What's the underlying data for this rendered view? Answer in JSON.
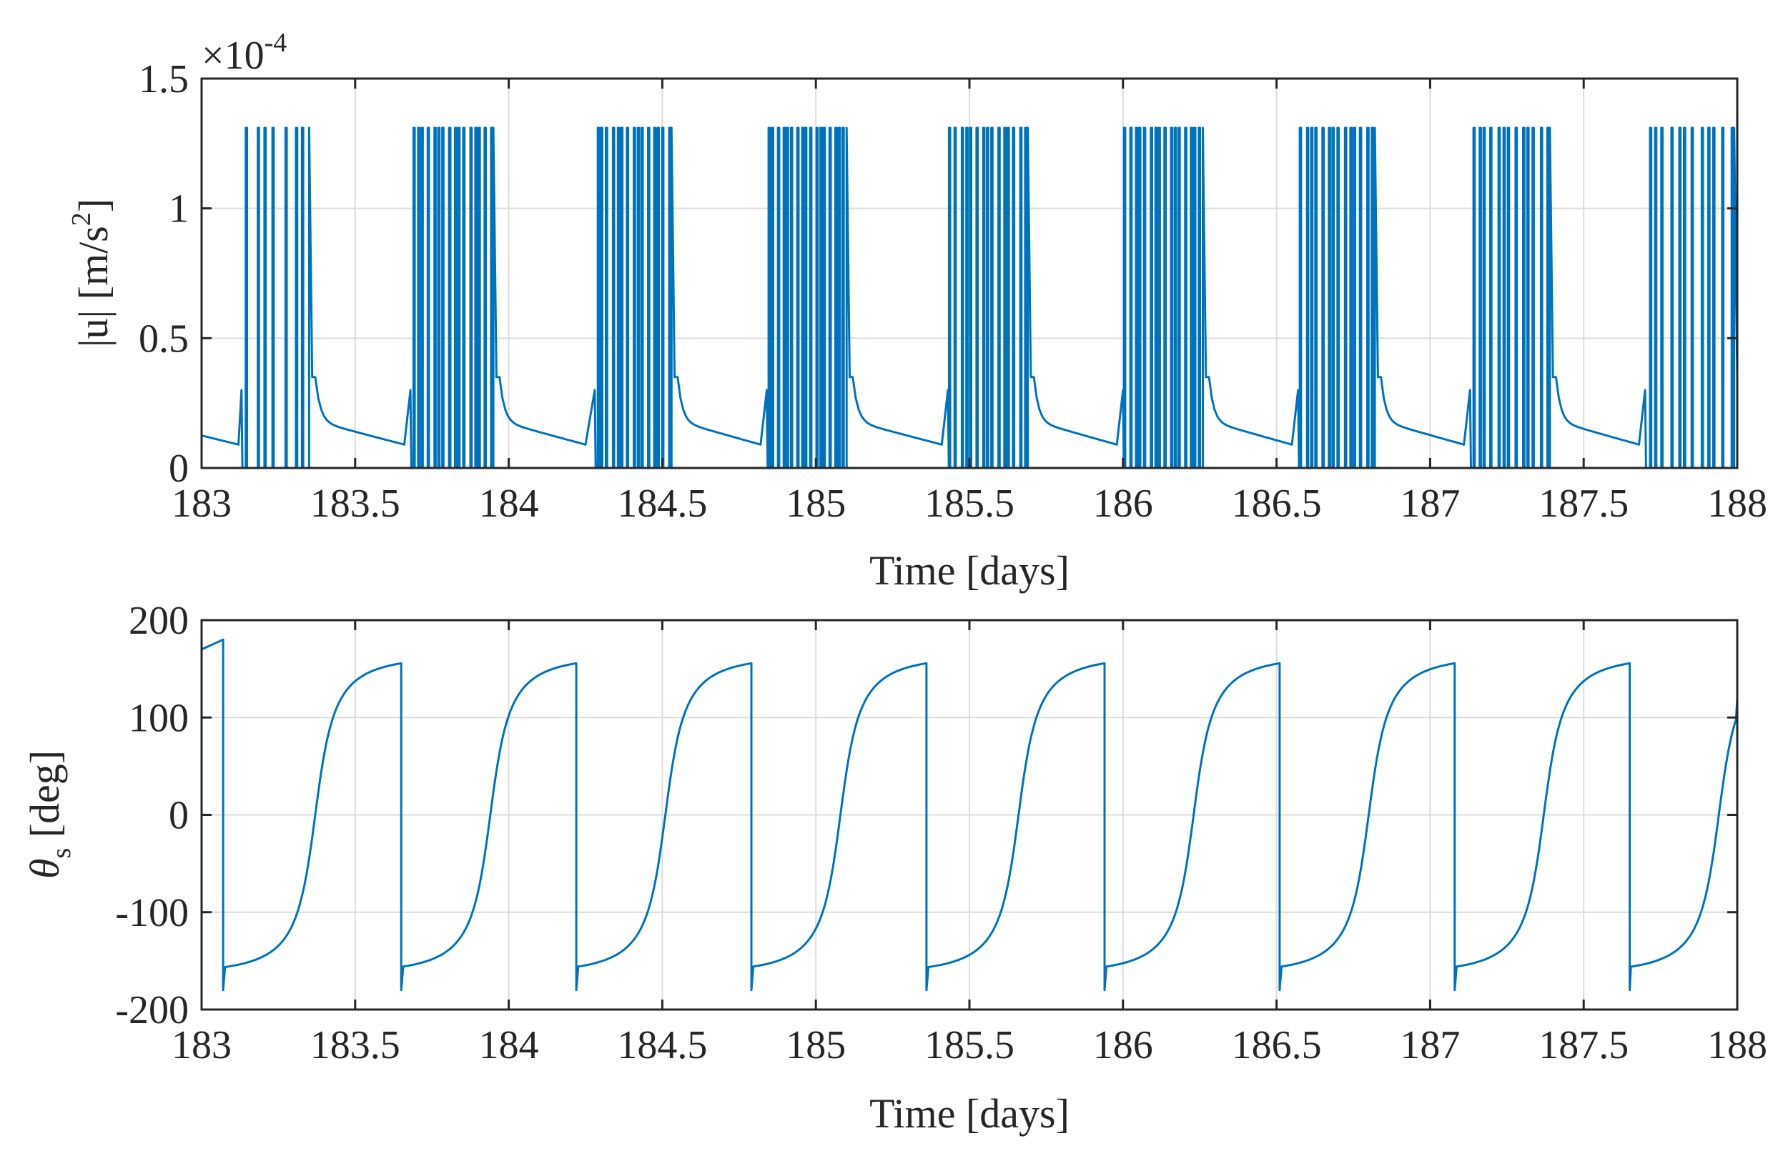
{
  "colors": {
    "series": "#0072BD",
    "axis": "#262626",
    "grid": "#dcdcdc",
    "background": "#ffffff"
  },
  "chart_data": [
    {
      "type": "line",
      "title": "",
      "xlabel": "Time [days]",
      "ylabel_prefix": "|u| [m/s",
      "ylabel_sup": "2",
      "ylabel_suffix": "]",
      "exponent_base": "×10",
      "exponent_power": "-4",
      "xlim": [
        183,
        188
      ],
      "ylim": [
        0,
        1.5
      ],
      "grid": true,
      "x_ticks": [
        183,
        183.5,
        184,
        184.5,
        185,
        185.5,
        186,
        186.5,
        187,
        187.5,
        188
      ],
      "x_tick_labels": [
        "183",
        "183.5",
        "184",
        "184.5",
        "185",
        "185.5",
        "186",
        "186.5",
        "187",
        "187.5",
        "188"
      ],
      "y_ticks": [
        0,
        0.5,
        1,
        1.5
      ],
      "y_tick_labels": [
        "0",
        "0.5",
        "1",
        "1.5"
      ],
      "series": [
        {
          "name": "|u|",
          "saturation_level": 1.31,
          "coast_start_values": [
            0.18,
            0.18,
            0.18,
            0.18,
            0.18,
            0.18,
            0.18,
            0.18
          ],
          "coast_end_values": [
            0.09,
            0.09,
            0.09,
            0.09,
            0.09,
            0.09,
            0.09,
            0.09
          ],
          "bursts": [
            {
              "start": 183.13,
              "end": 183.35,
              "coast_end": 183.66,
              "pulses": 7
            },
            {
              "start": 183.68,
              "end": 183.95,
              "coast_end": 184.25,
              "pulses": 16
            },
            {
              "start": 184.28,
              "end": 184.53,
              "coast_end": 184.82,
              "pulses": 15
            },
            {
              "start": 184.84,
              "end": 185.1,
              "coast_end": 185.41,
              "pulses": 17
            },
            {
              "start": 185.43,
              "end": 185.69,
              "coast_end": 185.98,
              "pulses": 15
            },
            {
              "start": 186.0,
              "end": 186.26,
              "coast_end": 186.55,
              "pulses": 16
            },
            {
              "start": 186.57,
              "end": 186.82,
              "coast_end": 187.11,
              "pulses": 14
            },
            {
              "start": 187.13,
              "end": 187.39,
              "coast_end": 187.68,
              "pulses": 13
            },
            {
              "start": 187.7,
              "end": 187.99,
              "coast_end": 188.0,
              "pulses": 12
            }
          ]
        }
      ]
    },
    {
      "type": "line",
      "title": "",
      "xlabel": "Time [days]",
      "ylabel_symbol": "θ",
      "ylabel_sub": "s",
      "ylabel_suffix": " [deg]",
      "xlim": [
        183,
        188
      ],
      "ylim": [
        -200,
        200
      ],
      "grid": true,
      "x_ticks": [
        183,
        183.5,
        184,
        184.5,
        185,
        185.5,
        186,
        186.5,
        187,
        187.5,
        188
      ],
      "x_tick_labels": [
        "183",
        "183.5",
        "184",
        "184.5",
        "185",
        "185.5",
        "186",
        "186.5",
        "187",
        "187.5",
        "188"
      ],
      "y_ticks": [
        -200,
        -100,
        0,
        100,
        200
      ],
      "y_tick_labels": [
        "-200",
        "-100",
        "0",
        "100",
        "200"
      ],
      "series": [
        {
          "name": "θs",
          "start_value": 170,
          "wrap_times": [
            183.07,
            183.65,
            184.22,
            184.79,
            185.36,
            185.94,
            186.51,
            187.08,
            187.65
          ],
          "zero_crossings": [
            183.37,
            183.94,
            184.51,
            185.08,
            185.66,
            186.23,
            186.8,
            187.37,
            187.94
          ],
          "end_value": 120,
          "max_value": 180,
          "min_value": -180
        }
      ]
    }
  ]
}
